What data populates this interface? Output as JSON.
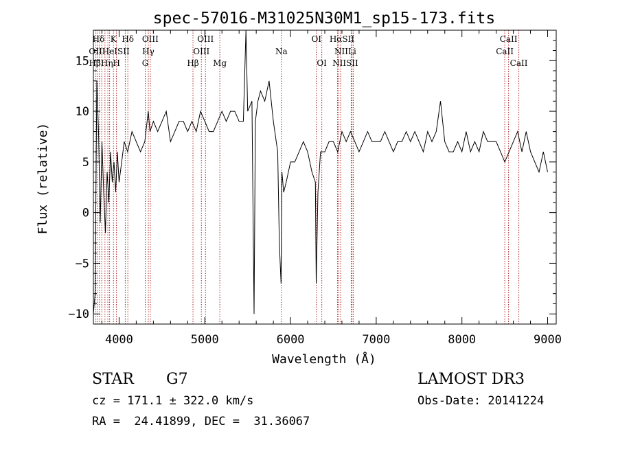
{
  "chart_data": {
    "type": "line",
    "title": "spec-57016-M31025N30M1_sp15-173.fits",
    "xlabel": "Wavelength (Å)",
    "ylabel": "Flux (relative)",
    "xlim": [
      3700,
      9100
    ],
    "ylim": [
      -11,
      18
    ],
    "xticks": [
      4000,
      5000,
      6000,
      7000,
      8000,
      9000
    ],
    "yticks": [
      -10,
      -5,
      0,
      5,
      10,
      15
    ],
    "grid": false,
    "series": [
      {
        "x": [
          3700,
          3720,
          3740,
          3760,
          3780,
          3800,
          3820,
          3840,
          3860,
          3880,
          3900,
          3920,
          3940,
          3960,
          3980,
          4000,
          4030,
          4060,
          4100,
          4150,
          4200,
          4250,
          4300,
          4340,
          4360,
          4400,
          4450,
          4500,
          4550,
          4600,
          4650,
          4700,
          4750,
          4800,
          4850,
          4900,
          4950,
          5000,
          5050,
          5100,
          5150,
          5200,
          5250,
          5300,
          5350,
          5400,
          5450,
          5480,
          5500,
          5550,
          5575,
          5590,
          5620,
          5650,
          5700,
          5750,
          5800,
          5850,
          5870,
          5890,
          5900,
          5920,
          5950,
          6000,
          6050,
          6100,
          6150,
          6200,
          6250,
          6290,
          6300,
          6320,
          6350,
          6400,
          6450,
          6500,
          6550,
          6600,
          6650,
          6700,
          6750,
          6800,
          6850,
          6900,
          6950,
          7000,
          7050,
          7100,
          7150,
          7200,
          7250,
          7300,
          7350,
          7400,
          7450,
          7500,
          7550,
          7600,
          7650,
          7700,
          7750,
          7800,
          7850,
          7900,
          7950,
          8000,
          8050,
          8100,
          8150,
          8200,
          8250,
          8300,
          8350,
          8400,
          8450,
          8500,
          8550,
          8600,
          8650,
          8700,
          8750,
          8800,
          8850,
          8900,
          8950,
          9000
        ],
        "values": [
          -10,
          -8,
          13,
          8,
          -1,
          7,
          2,
          -2,
          4,
          1,
          6,
          3,
          5,
          2,
          6,
          3,
          5,
          7,
          6,
          8,
          7,
          6,
          7,
          10,
          8,
          9,
          8,
          9,
          10,
          7,
          8,
          9,
          9,
          8,
          9,
          8,
          10,
          9,
          8,
          8,
          9,
          10,
          9,
          10,
          10,
          9,
          9,
          18,
          10,
          11,
          -10,
          9,
          11,
          12,
          11,
          13,
          9,
          6,
          -3,
          -7,
          4,
          2,
          3,
          5,
          5,
          6,
          7,
          6,
          4,
          3,
          -7,
          2,
          6,
          6,
          7,
          7,
          6,
          8,
          7,
          8,
          7,
          6,
          7,
          8,
          7,
          7,
          7,
          8,
          7,
          6,
          7,
          7,
          8,
          7,
          8,
          7,
          6,
          8,
          7,
          8,
          11,
          7,
          6,
          6,
          7,
          6,
          8,
          6,
          7,
          6,
          8,
          7,
          7,
          7,
          6,
          5,
          6,
          7,
          8,
          6,
          8,
          6,
          5,
          4,
          6,
          4
        ]
      }
    ],
    "lines": [
      {
        "x": 3729,
        "labels": [
          "OII"
        ]
      },
      {
        "x": 3750,
        "labels": [
          "Hθ"
        ]
      },
      {
        "x": 3771,
        "labels": [
          "Hη"
        ]
      },
      {
        "x": 3798,
        "labels": [
          "Hζ"
        ]
      },
      {
        "x": 3835,
        "labels": [
          "Hζ"
        ]
      },
      {
        "x": 3869,
        "labels": [
          "He"
        ]
      },
      {
        "x": 3889,
        "labels": [
          "Hε"
        ]
      },
      {
        "x": 3934,
        "labels": [
          "K"
        ]
      },
      {
        "x": 3969,
        "labels": [
          "H"
        ]
      },
      {
        "x": 4072,
        "labels": [
          "SII"
        ]
      },
      {
        "x": 4102,
        "labels": [
          "Hδ"
        ]
      },
      {
        "x": 4305,
        "labels": [
          "G"
        ]
      },
      {
        "x": 4341,
        "labels": [
          "Hγ"
        ]
      },
      {
        "x": 4364,
        "labels": [
          "OIII"
        ]
      },
      {
        "x": 4862,
        "labels": [
          "Hβ"
        ]
      },
      {
        "x": 4960,
        "labels": [
          "OIII"
        ]
      },
      {
        "x": 5008,
        "labels": [
          "OIII"
        ]
      },
      {
        "x": 5175,
        "labels": [
          "Mg"
        ]
      },
      {
        "x": 5894,
        "labels": [
          "Na"
        ]
      },
      {
        "x": 6302,
        "labels": [
          "OI"
        ]
      },
      {
        "x": 6365,
        "labels": [
          "OI"
        ]
      },
      {
        "x": 6549,
        "labels": [
          "NII"
        ]
      },
      {
        "x": 6564,
        "labels": [
          "Hα"
        ]
      },
      {
        "x": 6585,
        "labels": [
          "NII"
        ]
      },
      {
        "x": 6708,
        "labels": [
          "Li"
        ]
      },
      {
        "x": 6718,
        "labels": [
          "SII"
        ]
      },
      {
        "x": 6733,
        "labels": [
          "SII"
        ]
      },
      {
        "x": 8500,
        "labels": [
          "CaII"
        ]
      },
      {
        "x": 8544,
        "labels": [
          "CaII"
        ]
      },
      {
        "x": 8664,
        "labels": [
          "CaII"
        ]
      }
    ]
  },
  "labels_rows": [
    [
      {
        "text": "Hδ",
        "x": 3760
      },
      {
        "text": "K",
        "x": 3934
      },
      {
        "text": "Hδ",
        "x": 4102
      },
      {
        "text": "OIII",
        "x": 4364
      },
      {
        "text": "OIII",
        "x": 5008
      },
      {
        "text": "OI",
        "x": 6302
      },
      {
        "text": "HαSII",
        "x": 6600
      },
      {
        "text": "CaII",
        "x": 8544
      }
    ],
    [
      {
        "text": "OIIHeISII",
        "x": 3885
      },
      {
        "text": "Hγ",
        "x": 4341
      },
      {
        "text": "OIII",
        "x": 4960
      },
      {
        "text": "Na",
        "x": 5894
      },
      {
        "text": "NIILi",
        "x": 6640
      },
      {
        "text": "CaII",
        "x": 8500
      }
    ],
    [
      {
        "text": "HβHηH",
        "x": 3830
      },
      {
        "text": "G",
        "x": 4305
      },
      {
        "text": "Hβ",
        "x": 4862
      },
      {
        "text": "Mg",
        "x": 5175
      },
      {
        "text": "OI",
        "x": 6365
      },
      {
        "text": "NIISII",
        "x": 6640
      },
      {
        "text": "CaII",
        "x": 8664
      }
    ]
  ],
  "info": {
    "object_type": "STAR",
    "subclass": "G7",
    "survey": "LAMOST DR3",
    "redshift": "cz = 171.1 ± 322.0 km/s",
    "obs_date": "Obs-Date: 20141224",
    "coords": "RA =  24.41899, DEC =  31.36067"
  }
}
